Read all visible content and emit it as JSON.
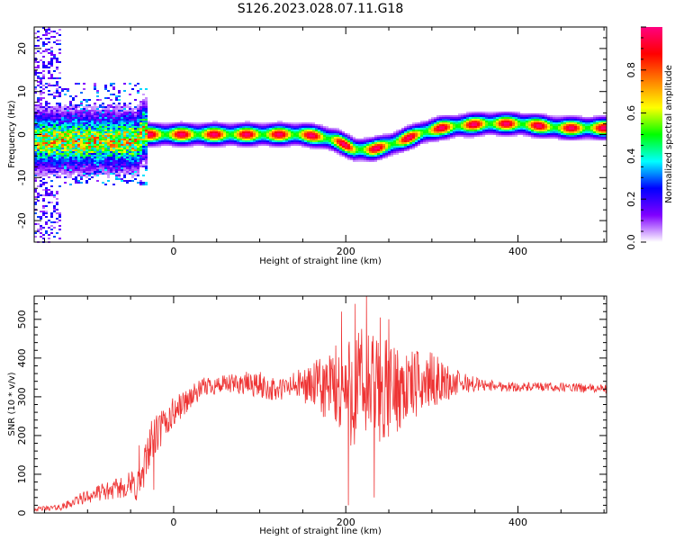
{
  "title": "S126.2023.028.07.11.G18",
  "chart_data": [
    {
      "type": "heatmap",
      "xlabel": "Height of straight line (km)",
      "ylabel": "Frequency (Hz)",
      "xlim": [
        -162,
        503
      ],
      "ylim": [
        -25,
        25
      ],
      "xticks": [
        0,
        200,
        400
      ],
      "yticks": [
        -20,
        -10,
        0,
        10,
        20
      ],
      "colorbar": {
        "label": "Normalized spectral amplitude",
        "range": [
          0,
          1
        ],
        "ticks": [
          0.0,
          0.2,
          0.4,
          0.6,
          0.8
        ],
        "colors": [
          "#ffffff",
          "#8000ff",
          "#0000ff",
          "#00ffff",
          "#00ff00",
          "#ffff00",
          "#ff8000",
          "#ff0000",
          "#ff0080"
        ]
      },
      "ridge": {
        "x": [
          -50,
          -45,
          -40,
          -35,
          -30,
          -20,
          0,
          50,
          100,
          150,
          170,
          190,
          210,
          230,
          250,
          270,
          290,
          310,
          330,
          360,
          400,
          450,
          503
        ],
        "freq": [
          -1.5,
          -2,
          -1,
          1,
          0,
          0,
          0,
          0,
          0,
          0,
          -0.5,
          -1.5,
          -3.5,
          -3.5,
          -2.5,
          -1,
          0.5,
          1.5,
          2,
          2.5,
          2.5,
          1.5,
          1.5
        ]
      }
    },
    {
      "type": "line",
      "xlabel": "Height of straight line (km)",
      "ylabel": "SNR (10 * v/v)",
      "xlim": [
        -162,
        503
      ],
      "ylim": [
        0,
        560
      ],
      "xticks": [
        0,
        200,
        400
      ],
      "yticks": [
        0,
        100,
        200,
        300,
        400,
        500
      ],
      "color": "#ee3333",
      "envelope": {
        "x": [
          -162,
          -130,
          -110,
          -90,
          -70,
          -55,
          -45,
          -35,
          -30,
          -20,
          -10,
          0,
          20,
          40,
          60,
          80,
          100,
          120,
          140,
          160,
          180,
          200,
          215,
          230,
          245,
          260,
          280,
          300,
          320,
          340,
          360,
          400,
          450,
          503
        ],
        "mean": [
          10,
          15,
          35,
          50,
          60,
          70,
          70,
          90,
          170,
          200,
          230,
          260,
          300,
          330,
          330,
          335,
          330,
          315,
          330,
          330,
          320,
          315,
          320,
          320,
          315,
          320,
          330,
          345,
          335,
          335,
          330,
          325,
          325,
          320
        ],
        "amplitude": [
          5,
          8,
          15,
          20,
          25,
          30,
          50,
          60,
          60,
          55,
          50,
          40,
          30,
          25,
          25,
          30,
          35,
          30,
          35,
          55,
          100,
          140,
          170,
          150,
          140,
          110,
          90,
          70,
          45,
          25,
          15,
          12,
          12,
          12
        ]
      },
      "spikes": [
        {
          "x": 203,
          "y": 20
        },
        {
          "x": 211,
          "y": 540
        },
        {
          "x": 224,
          "y": 560
        },
        {
          "x": 233,
          "y": 40
        },
        {
          "x": 240,
          "y": 505
        },
        {
          "x": 250,
          "y": 500
        },
        {
          "x": 260,
          "y": 420
        },
        {
          "x": 185,
          "y": 400
        },
        {
          "x": 195,
          "y": 520
        },
        {
          "x": -23,
          "y": 60
        },
        {
          "x": -40,
          "y": 175
        }
      ]
    }
  ]
}
